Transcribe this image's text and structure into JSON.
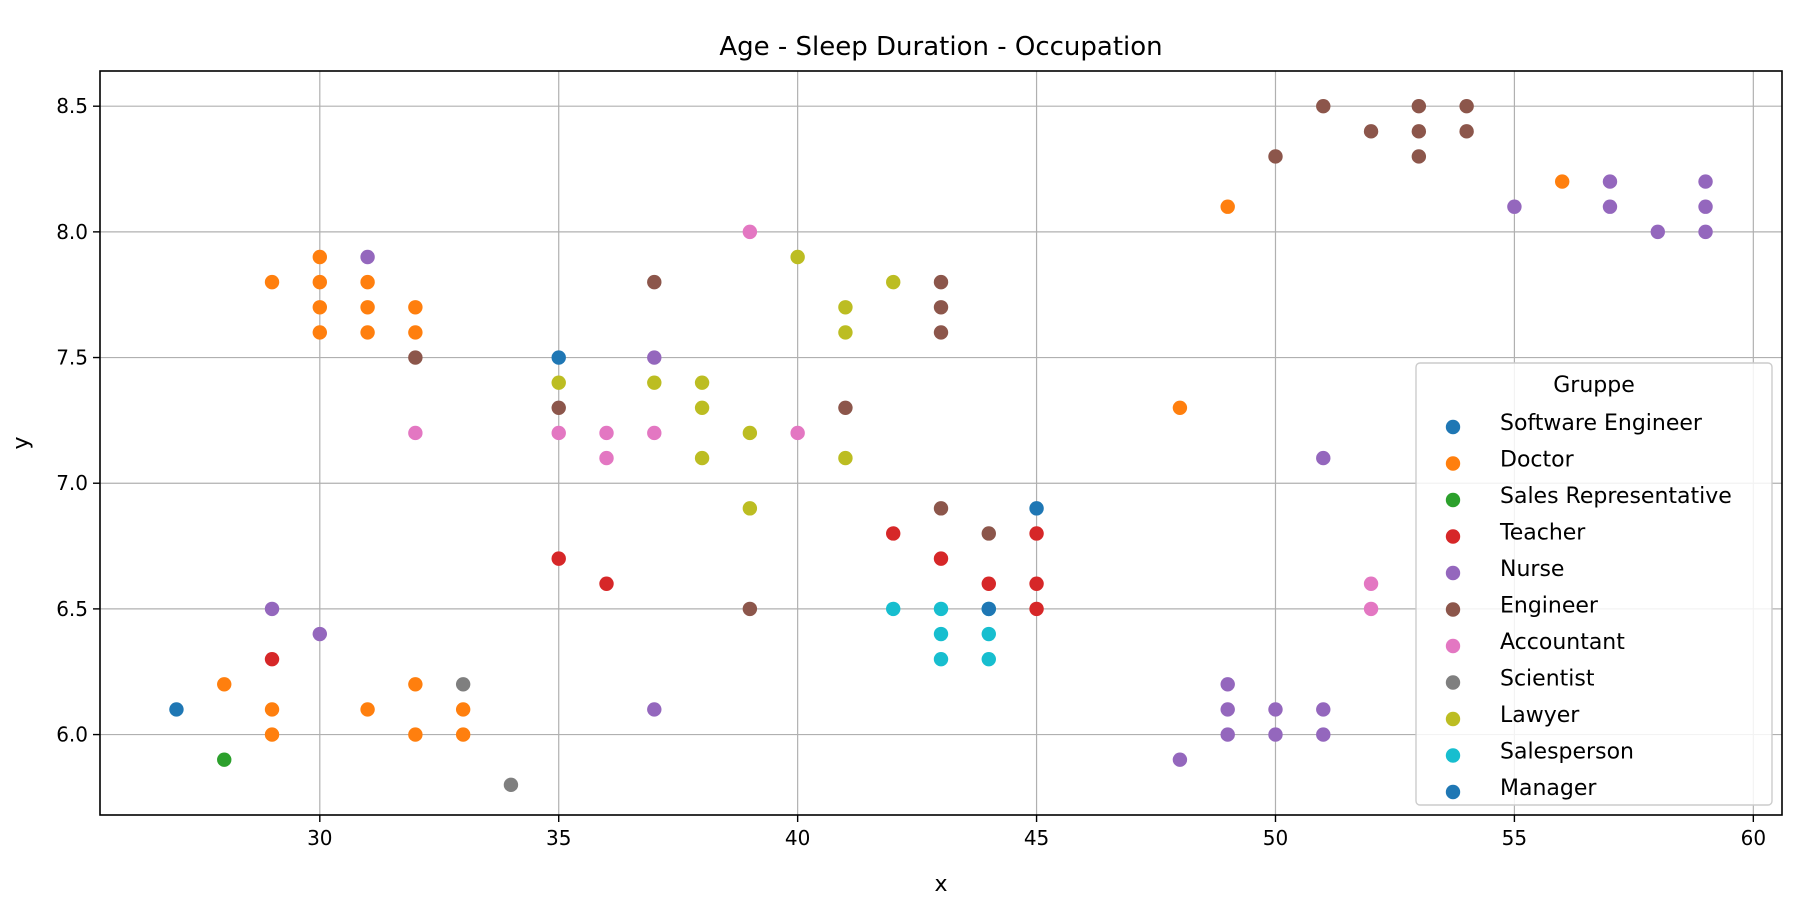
{
  "chart_data": {
    "type": "scatter",
    "title": "Age - Sleep Duration - Occupation",
    "xlabel": "x",
    "ylabel": "y",
    "xlim": [
      25.4,
      60.6
    ],
    "ylim": [
      5.68,
      8.64
    ],
    "x_ticks": [
      30,
      35,
      40,
      45,
      50,
      55,
      60
    ],
    "y_ticks": [
      6.0,
      6.5,
      7.0,
      7.5,
      8.0,
      8.5
    ],
    "x_tick_labels": [
      "30",
      "35",
      "40",
      "45",
      "50",
      "55",
      "60"
    ],
    "y_tick_labels": [
      "6.0",
      "6.5",
      "7.0",
      "7.5",
      "8.0",
      "8.5"
    ],
    "grid": true,
    "legend": {
      "title": "Gruppe",
      "placement": "lower-right"
    },
    "series": [
      {
        "name": "Software Engineer",
        "color": "#1f77b4",
        "points": [
          [
            27,
            6.1
          ],
          [
            35,
            7.5
          ],
          [
            45,
            6.9
          ]
        ]
      },
      {
        "name": "Doctor",
        "color": "#ff7f0e",
        "points": [
          [
            28,
            6.2
          ],
          [
            29,
            7.8
          ],
          [
            29,
            6.1
          ],
          [
            29,
            6.0
          ],
          [
            30,
            7.9
          ],
          [
            30,
            7.8
          ],
          [
            30,
            7.7
          ],
          [
            30,
            7.6
          ],
          [
            31,
            7.8
          ],
          [
            31,
            7.7
          ],
          [
            31,
            7.6
          ],
          [
            31,
            6.1
          ],
          [
            32,
            7.7
          ],
          [
            32,
            7.6
          ],
          [
            32,
            6.2
          ],
          [
            32,
            6.0
          ],
          [
            33,
            6.1
          ],
          [
            33,
            6.0
          ],
          [
            48,
            7.3
          ],
          [
            49,
            8.1
          ],
          [
            56,
            8.2
          ]
        ]
      },
      {
        "name": "Sales Representative",
        "color": "#2ca02c",
        "points": [
          [
            28,
            5.9
          ]
        ]
      },
      {
        "name": "Teacher",
        "color": "#d62728",
        "points": [
          [
            29,
            6.3
          ],
          [
            35,
            6.7
          ],
          [
            36,
            6.6
          ],
          [
            42,
            6.8
          ],
          [
            43,
            6.7
          ],
          [
            44,
            6.6
          ],
          [
            45,
            6.8
          ],
          [
            45,
            6.6
          ],
          [
            45,
            6.5
          ]
        ]
      },
      {
        "name": "Nurse",
        "color": "#9467bd",
        "points": [
          [
            29,
            6.5
          ],
          [
            30,
            6.4
          ],
          [
            31,
            7.9
          ],
          [
            37,
            7.5
          ],
          [
            37,
            6.1
          ],
          [
            48,
            5.9
          ],
          [
            49,
            6.2
          ],
          [
            49,
            6.1
          ],
          [
            49,
            6.0
          ],
          [
            50,
            6.1
          ],
          [
            50,
            6.0
          ],
          [
            51,
            7.1
          ],
          [
            51,
            6.1
          ],
          [
            51,
            6.0
          ],
          [
            55,
            8.1
          ],
          [
            57,
            8.2
          ],
          [
            57,
            8.1
          ],
          [
            58,
            8.0
          ],
          [
            59,
            8.2
          ],
          [
            59,
            8.1
          ],
          [
            59,
            8.0
          ]
        ]
      },
      {
        "name": "Engineer",
        "color": "#8c564b",
        "points": [
          [
            32,
            7.5
          ],
          [
            35,
            7.3
          ],
          [
            37,
            7.8
          ],
          [
            39,
            6.5
          ],
          [
            41,
            7.3
          ],
          [
            43,
            7.8
          ],
          [
            43,
            7.7
          ],
          [
            43,
            7.6
          ],
          [
            43,
            6.9
          ],
          [
            44,
            6.8
          ],
          [
            50,
            8.3
          ],
          [
            51,
            8.5
          ],
          [
            52,
            8.4
          ],
          [
            53,
            8.5
          ],
          [
            53,
            8.4
          ],
          [
            53,
            8.3
          ],
          [
            54,
            8.5
          ],
          [
            54,
            8.4
          ]
        ]
      },
      {
        "name": "Accountant",
        "color": "#e377c2",
        "points": [
          [
            32,
            7.2
          ],
          [
            35,
            7.2
          ],
          [
            36,
            7.2
          ],
          [
            36,
            7.1
          ],
          [
            37,
            7.2
          ],
          [
            39,
            8.0
          ],
          [
            40,
            7.2
          ],
          [
            52,
            6.6
          ],
          [
            52,
            6.5
          ]
        ]
      },
      {
        "name": "Scientist",
        "color": "#7f7f7f",
        "points": [
          [
            33,
            6.2
          ],
          [
            34,
            5.8
          ]
        ]
      },
      {
        "name": "Lawyer",
        "color": "#bcbd22",
        "points": [
          [
            35,
            7.4
          ],
          [
            37,
            7.4
          ],
          [
            38,
            7.4
          ],
          [
            38,
            7.3
          ],
          [
            38,
            7.1
          ],
          [
            39,
            7.2
          ],
          [
            39,
            6.9
          ],
          [
            40,
            7.9
          ],
          [
            41,
            7.7
          ],
          [
            41,
            7.6
          ],
          [
            41,
            7.1
          ],
          [
            42,
            7.8
          ]
        ]
      },
      {
        "name": "Salesperson",
        "color": "#17becf",
        "points": [
          [
            42,
            6.5
          ],
          [
            43,
            6.5
          ],
          [
            43,
            6.4
          ],
          [
            43,
            6.3
          ],
          [
            44,
            6.5
          ],
          [
            44,
            6.4
          ],
          [
            44,
            6.3
          ]
        ]
      },
      {
        "name": "Manager",
        "color": "#1f77b4",
        "points": [
          [
            44,
            6.5
          ]
        ]
      }
    ]
  }
}
